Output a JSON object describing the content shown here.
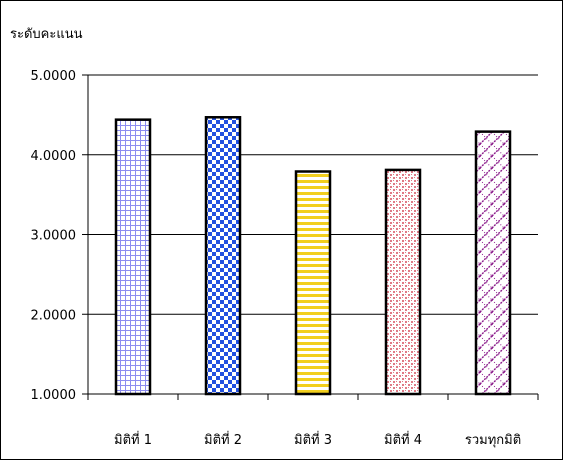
{
  "chart_data": {
    "type": "bar",
    "ylabel": "ระดับคะแนน",
    "categories": [
      "มิติที่ 1",
      "มิติที่ 2",
      "มิติที่ 3",
      "มิติที่ 4",
      "รวมทุกมิติ"
    ],
    "values": [
      4.44,
      4.47,
      3.79,
      3.81,
      4.29
    ],
    "ylim": [
      1.0,
      5.0
    ],
    "yticks": [
      "1.0000",
      "2.0000",
      "3.0000",
      "4.0000",
      "5.0000"
    ],
    "grid": true,
    "patterns": [
      "grid",
      "checker",
      "stripes",
      "dots",
      "diagonal-hatch"
    ],
    "pattern_colors": [
      "#8c8cf0",
      "#2250e0",
      "#f2cf1e",
      "#e07a86",
      "#8a1a8a"
    ]
  }
}
